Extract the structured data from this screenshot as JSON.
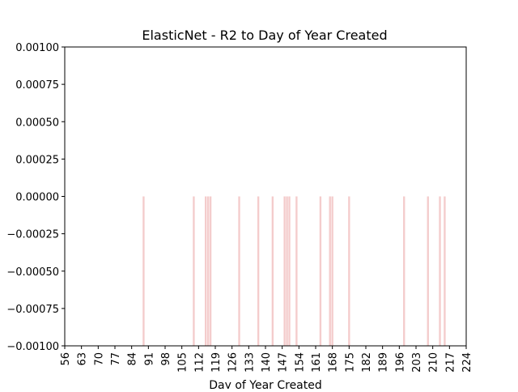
{
  "chart_data": {
    "type": "bar",
    "title": "ElasticNet - R2 to Day of Year Created",
    "xlabel": "Day of Year Created",
    "ylabel": "",
    "x_ticks": [
      "56",
      "63",
      "70",
      "77",
      "84",
      "91",
      "98",
      "105",
      "112",
      "119",
      "126",
      "133",
      "140",
      "147",
      "154",
      "161",
      "168",
      "175",
      "182",
      "189",
      "196",
      "203",
      "210",
      "217",
      "224"
    ],
    "x_range": [
      56,
      224
    ],
    "y_ticks": [
      "0.00100",
      "0.00075",
      "0.00050",
      "0.00025",
      "0.00000",
      "−0.00025",
      "−0.00050",
      "−0.00075",
      "−0.00100"
    ],
    "ylim": [
      -0.001,
      0.001
    ],
    "bar_color": "#f4cccc",
    "x": [
      89,
      110,
      115,
      116,
      117,
      129,
      137,
      143,
      148,
      149,
      150,
      153,
      163,
      167,
      168,
      175,
      198,
      208,
      213,
      215
    ],
    "values": [
      0,
      0,
      0,
      0,
      0,
      0,
      0,
      0,
      0,
      0,
      0,
      0,
      0,
      0,
      0,
      0,
      0,
      0,
      0,
      0
    ]
  }
}
